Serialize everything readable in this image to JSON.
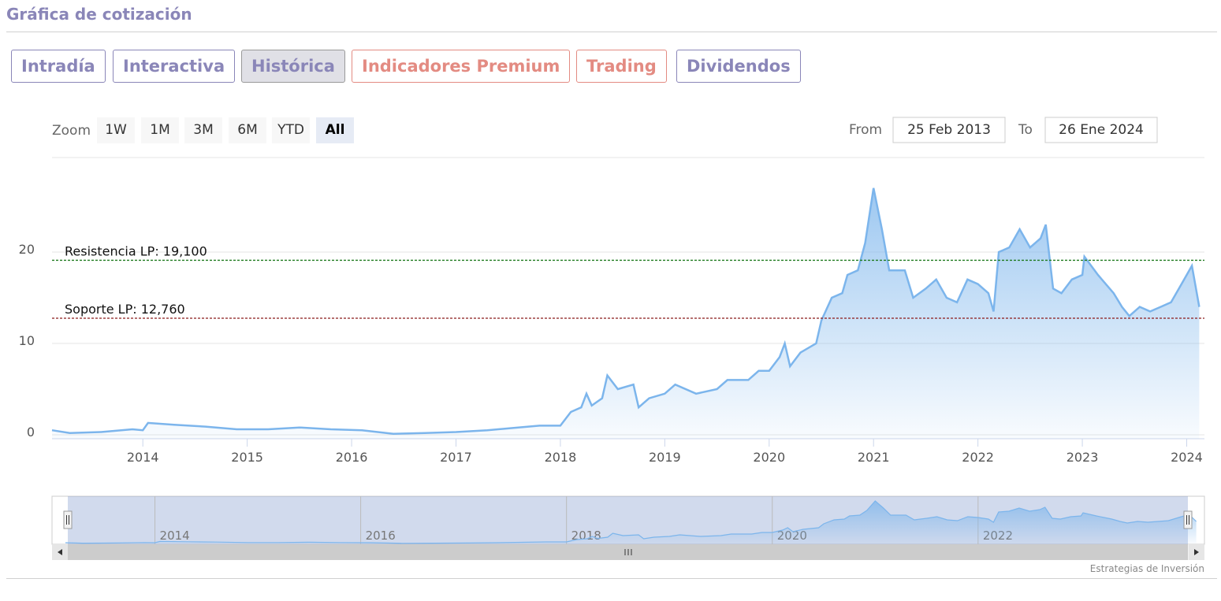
{
  "header": {
    "title": "Gráfica de cotización"
  },
  "tabs": [
    {
      "label": "Intradía",
      "color": "#8a86b8"
    },
    {
      "label": "Interactiva",
      "color": "#8a86b8"
    },
    {
      "label": "Histórica",
      "color": "#8a86b8",
      "active": true
    },
    {
      "label": "Indicadores Premium",
      "color": "#e38b82"
    },
    {
      "label": "Trading",
      "color": "#e38b82"
    },
    {
      "label": "Dividendos",
      "color": "#8a86b8"
    }
  ],
  "zoom": {
    "label": "Zoom",
    "buttons": [
      "1W",
      "1M",
      "3M",
      "6M",
      "YTD",
      "All"
    ],
    "active": 5
  },
  "range": {
    "from_label": "From",
    "from": "25 Feb 2013",
    "to_label": "To",
    "to": "26 Ene 2024"
  },
  "chart_data": {
    "type": "area",
    "x": [
      2013.13,
      2013.3,
      2013.6,
      2013.9,
      2014.0,
      2014.05,
      2014.3,
      2014.6,
      2014.9,
      2015.2,
      2015.5,
      2015.8,
      2016.1,
      2016.4,
      2016.7,
      2017.0,
      2017.3,
      2017.5,
      2017.8,
      2018.0,
      2018.1,
      2018.2,
      2018.25,
      2018.3,
      2018.4,
      2018.45,
      2018.55,
      2018.7,
      2018.75,
      2018.85,
      2019.0,
      2019.1,
      2019.3,
      2019.5,
      2019.6,
      2019.8,
      2019.9,
      2020.0,
      2020.1,
      2020.15,
      2020.2,
      2020.3,
      2020.45,
      2020.5,
      2020.6,
      2020.7,
      2020.75,
      2020.85,
      2020.92,
      2021.0,
      2021.08,
      2021.15,
      2021.3,
      2021.38,
      2021.5,
      2021.6,
      2021.7,
      2021.8,
      2021.9,
      2022.0,
      2022.1,
      2022.15,
      2022.2,
      2022.3,
      2022.4,
      2022.5,
      2022.6,
      2022.65,
      2022.72,
      2022.8,
      2022.9,
      2023.0,
      2023.02,
      2023.15,
      2023.3,
      2023.38,
      2023.45,
      2023.55,
      2023.65,
      2023.75,
      2023.85,
      2023.95,
      2024.05,
      2024.12
    ],
    "series": [
      {
        "color": "#7cb5ec",
        "values": [
          0.5,
          0.2,
          0.3,
          0.6,
          0.5,
          1.3,
          1.1,
          0.9,
          0.6,
          0.6,
          0.8,
          0.6,
          0.5,
          0.1,
          0.2,
          0.3,
          0.5,
          0.7,
          1.0,
          1.0,
          2.5,
          3.0,
          4.5,
          3.2,
          4.0,
          6.5,
          5.0,
          5.5,
          3.0,
          4.0,
          4.5,
          5.5,
          4.5,
          5.0,
          6.0,
          6.0,
          7.0,
          7.0,
          8.5,
          10.0,
          7.5,
          9.0,
          10.0,
          12.5,
          15.0,
          15.5,
          17.5,
          18.0,
          21.0,
          27.0,
          22.5,
          18.0,
          18.0,
          15.0,
          16.0,
          17.0,
          15.0,
          14.5,
          17.0,
          16.5,
          15.5,
          13.5,
          20.0,
          20.5,
          22.5,
          20.5,
          21.5,
          23.0,
          16.0,
          15.5,
          17.0,
          17.5,
          19.5,
          17.5,
          15.5,
          14.0,
          13.0,
          14.0,
          13.5,
          14.0,
          14.5,
          16.5,
          18.5,
          14.0
        ]
      }
    ],
    "xlim": [
      2013.13,
      2024.17
    ],
    "xticks": [
      2014,
      2015,
      2016,
      2017,
      2018,
      2019,
      2020,
      2021,
      2022,
      2023,
      2024
    ],
    "ylim": [
      0,
      30
    ],
    "yticks": [
      0,
      10,
      20
    ],
    "grid": true,
    "annotations": [
      {
        "label": "Resistencia LP: 19,100",
        "value": 19.1,
        "color": "#1f7a1f"
      },
      {
        "label": "Soporte LP: 12,760",
        "value": 12.76,
        "color": "#8b1a1a"
      }
    ],
    "navigator": {
      "xlim": [
        2013.0,
        2024.2
      ],
      "ylim": [
        0,
        28
      ],
      "xticks": [
        2014,
        2016,
        2018,
        2020,
        2022
      ]
    }
  },
  "credit": "Estrategias de Inversión"
}
